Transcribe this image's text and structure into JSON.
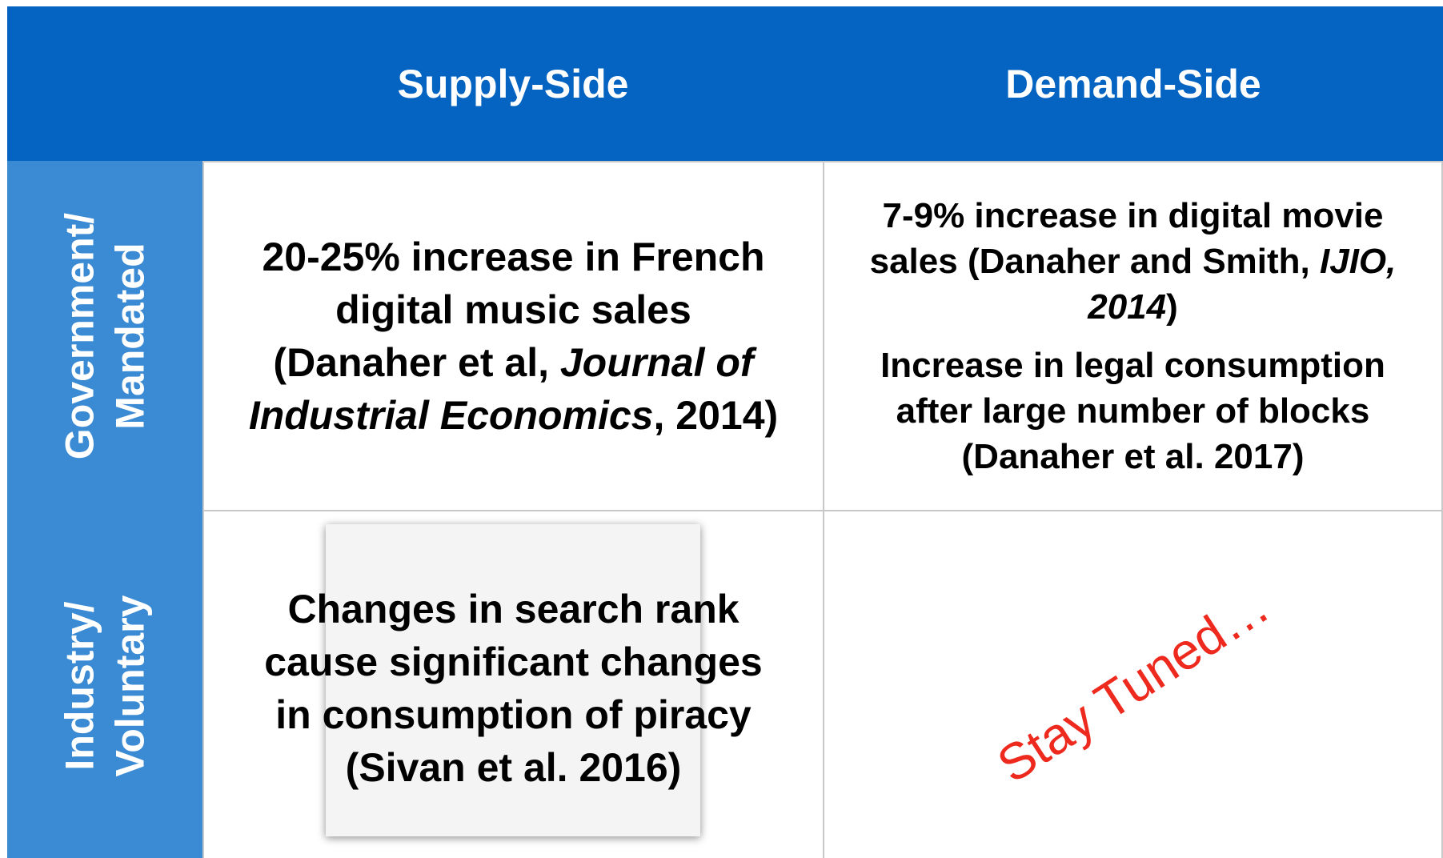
{
  "header": {
    "columns": [
      "Supply-Side",
      "Demand-Side"
    ]
  },
  "rows": [
    {
      "label": [
        "Government/",
        "Mandated"
      ],
      "cells": [
        [
          [
            "20-25% increase in French digital music sales (Danaher et al, ",
            "Journal of Industrial Economics",
            ", 2014)"
          ]
        ],
        [
          [
            "7-9% increase in digital movie sales (Danaher and Smith, ",
            "IJIO, 2014",
            ")"
          ],
          [
            "Increase in legal consumption after large number of blocks (Danaher et al. 2017)"
          ]
        ]
      ]
    },
    {
      "label": [
        "Industry/",
        "Voluntary"
      ],
      "cells": [
        [
          [
            "Changes in search rank cause significant changes in consumption of piracy (Sivan et al. 2016)"
          ]
        ],
        [
          [
            "Stay Tuned…"
          ]
        ]
      ]
    }
  ]
}
